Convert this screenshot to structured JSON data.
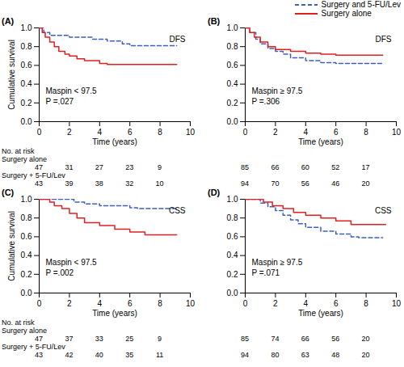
{
  "chart_data": [
    {
      "type": "step",
      "title": "(A)",
      "legend": "top-right",
      "xlabel": "Time (years)",
      "ylabel": "Cumulative survival",
      "xlim": [
        0,
        10
      ],
      "xticks": [
        0,
        2,
        4,
        6,
        8,
        10
      ],
      "ylim": [
        0,
        1
      ],
      "yticks": [
        {
          "value": 0,
          "label": "0.0"
        },
        0.2,
        0.4,
        0.6,
        0.8,
        {
          "value": 1,
          "label": "1.0"
        }
      ],
      "annotations": [
        "DFS",
        "Maspin < 97.5",
        "P =.027"
      ],
      "series": [
        {
          "name": "Surgery and 5-FU/Lev",
          "color": "#3f5fbf",
          "line_style": "dashed",
          "x": [
            0,
            0.3,
            0.7,
            2,
            3.5,
            4.5,
            5.5,
            6,
            9.1
          ],
          "values": [
            1,
            0.95,
            0.92,
            0.9,
            0.88,
            0.86,
            0.83,
            0.81,
            0.81
          ]
        },
        {
          "name": "Surgery alone",
          "color": "#e02020",
          "line_style": "solid",
          "x": [
            0,
            0.2,
            0.4,
            0.7,
            1,
            1.3,
            1.7,
            2,
            2.5,
            3,
            4,
            4.5,
            9.1
          ],
          "values": [
            1,
            0.95,
            0.9,
            0.85,
            0.8,
            0.75,
            0.72,
            0.7,
            0.67,
            0.65,
            0.62,
            0.61,
            0.61
          ]
        }
      ],
      "at_risk": {
        "label": "No. at risk",
        "x": [
          0,
          2,
          4,
          6,
          8
        ],
        "rows": [
          {
            "name": "Surgery alone",
            "values": [
              47,
              31,
              27,
              23,
              9
            ]
          },
          {
            "name": "Surgery + 5-FU/Lev",
            "values": [
              43,
              39,
              38,
              32,
              10
            ]
          }
        ]
      }
    },
    {
      "type": "step",
      "title": "(B)",
      "xlabel": "Time (years)",
      "xlim": [
        0,
        10
      ],
      "xticks": [
        0,
        2,
        4,
        6,
        8,
        10
      ],
      "ylim": [
        0,
        1
      ],
      "yticks": [
        {
          "value": 0,
          "label": "0.0"
        },
        0.2,
        0.4,
        0.6,
        0.8,
        {
          "value": 1,
          "label": "1.0"
        }
      ],
      "annotations": [
        "DFS",
        "Maspin ≥ 97.5",
        "P =.306"
      ],
      "series": [
        {
          "name": "Surgery and 5-FU/Lev",
          "color": "#3f5fbf",
          "line_style": "dashed",
          "x": [
            0,
            0.3,
            0.7,
            1,
            1.5,
            2,
            2.5,
            3,
            4,
            5,
            6,
            9.1
          ],
          "values": [
            1,
            0.95,
            0.88,
            0.83,
            0.78,
            0.75,
            0.72,
            0.68,
            0.65,
            0.63,
            0.62,
            0.62
          ]
        },
        {
          "name": "Surgery alone",
          "color": "#e02020",
          "line_style": "solid",
          "x": [
            0,
            0.3,
            0.6,
            1,
            1.5,
            2,
            3,
            4,
            5,
            6,
            9.1
          ],
          "values": [
            1,
            0.95,
            0.9,
            0.85,
            0.8,
            0.77,
            0.75,
            0.73,
            0.72,
            0.71,
            0.71
          ]
        }
      ],
      "at_risk": {
        "x": [
          0,
          2,
          4,
          6,
          8
        ],
        "rows": [
          {
            "values": [
              85,
              66,
              60,
              52,
              17
            ]
          },
          {
            "values": [
              94,
              70,
              56,
              46,
              20
            ]
          }
        ]
      }
    },
    {
      "type": "step",
      "title": "(C)",
      "xlabel": "Time (years)",
      "ylabel": "Cumulative survival",
      "xlim": [
        0,
        10
      ],
      "xticks": [
        0,
        2,
        4,
        6,
        8,
        10
      ],
      "ylim": [
        0,
        1
      ],
      "yticks": [
        {
          "value": 0,
          "label": "0.0"
        },
        0.2,
        0.4,
        0.6,
        0.8,
        {
          "value": 1,
          "label": "1.0"
        }
      ],
      "annotations": [
        "CSS",
        "Maspin < 97.5",
        "P =.002"
      ],
      "series": [
        {
          "name": "Surgery and 5-FU/Lev",
          "color": "#3f5fbf",
          "line_style": "dashed",
          "x": [
            0,
            2.3,
            3,
            4,
            6,
            6.5,
            9.1
          ],
          "values": [
            1,
            0.97,
            0.95,
            0.93,
            0.91,
            0.9,
            0.9
          ]
        },
        {
          "name": "Surgery alone",
          "color": "#e02020",
          "line_style": "solid",
          "x": [
            0,
            0.7,
            1,
            1.5,
            2,
            2.5,
            3,
            4,
            5,
            6,
            7,
            9.1
          ],
          "values": [
            1,
            0.97,
            0.93,
            0.9,
            0.85,
            0.8,
            0.75,
            0.72,
            0.68,
            0.65,
            0.62,
            0.62
          ]
        }
      ],
      "at_risk": {
        "label": "No. at risk",
        "x": [
          0,
          2,
          4,
          6,
          8
        ],
        "rows": [
          {
            "name": "Surgery alone",
            "values": [
              47,
              37,
              33,
              25,
              9
            ]
          },
          {
            "name": "Surgery + 5-FU/Lev",
            "values": [
              43,
              42,
              40,
              35,
              11
            ]
          }
        ]
      }
    },
    {
      "type": "step",
      "title": "(D)",
      "xlabel": "Time (years)",
      "xlim": [
        0,
        10
      ],
      "xticks": [
        0,
        2,
        4,
        6,
        8,
        10
      ],
      "ylim": [
        0,
        1
      ],
      "yticks": [
        {
          "value": 0,
          "label": "0.0"
        },
        0.2,
        0.4,
        0.6,
        0.8,
        {
          "value": 1,
          "label": "1.0"
        }
      ],
      "annotations": [
        "CSS",
        "Maspin ≥ 97.5",
        "P =.071"
      ],
      "series": [
        {
          "name": "Surgery and 5-FU/Lev",
          "color": "#3f5fbf",
          "line_style": "dashed",
          "x": [
            0,
            1,
            1.5,
            2,
            2.5,
            3,
            3.5,
            4,
            5,
            6,
            7,
            7.5,
            9.1
          ],
          "values": [
            1,
            0.96,
            0.92,
            0.88,
            0.83,
            0.78,
            0.74,
            0.7,
            0.66,
            0.63,
            0.6,
            0.59,
            0.59
          ]
        },
        {
          "name": "Surgery alone",
          "color": "#e02020",
          "line_style": "solid",
          "x": [
            0,
            1.2,
            1.8,
            2.5,
            3.2,
            4,
            5,
            6,
            7,
            9.3
          ],
          "values": [
            1,
            0.97,
            0.93,
            0.9,
            0.86,
            0.83,
            0.8,
            0.77,
            0.73,
            0.73
          ]
        }
      ],
      "at_risk": {
        "x": [
          0,
          2,
          4,
          6,
          8
        ],
        "rows": [
          {
            "values": [
              85,
              74,
              66,
              56,
              20
            ]
          },
          {
            "values": [
              94,
              80,
              63,
              48,
              20
            ]
          }
        ]
      }
    }
  ]
}
